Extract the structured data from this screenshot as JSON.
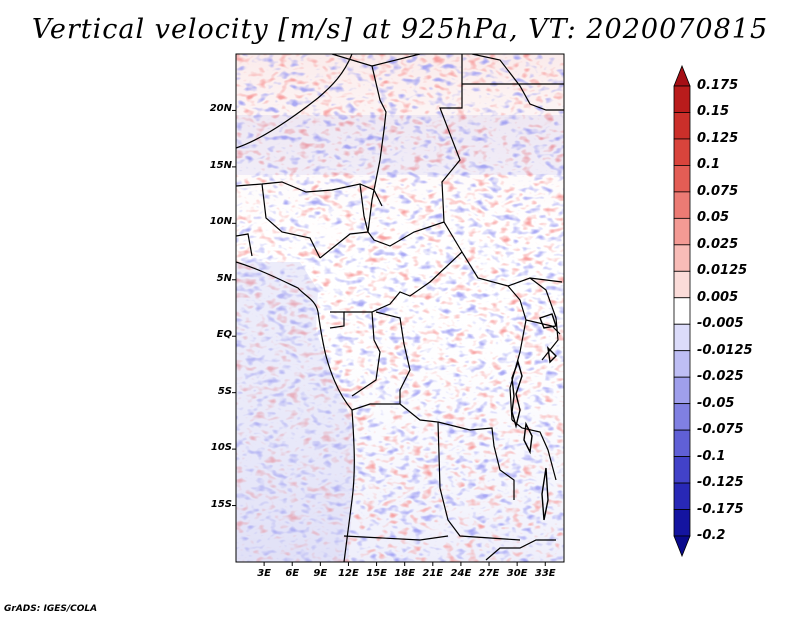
{
  "title": "Vertical velocity [m/s] at 925hPa, VT: 2020070815",
  "map": {
    "lat_labels": [
      {
        "label": "20N",
        "deg": 20
      },
      {
        "label": "15N",
        "deg": 15
      },
      {
        "label": "10N",
        "deg": 10
      },
      {
        "label": "5N",
        "deg": 5
      },
      {
        "label": "EQ",
        "deg": 0
      },
      {
        "label": "5S",
        "deg": -5
      },
      {
        "label": "10S",
        "deg": -10
      },
      {
        "label": "15S",
        "deg": -15
      }
    ],
    "lon_labels": [
      {
        "label": "3E",
        "deg": 3
      },
      {
        "label": "6E",
        "deg": 6
      },
      {
        "label": "9E",
        "deg": 9
      },
      {
        "label": "12E",
        "deg": 12
      },
      {
        "label": "15E",
        "deg": 15
      },
      {
        "label": "18E",
        "deg": 18
      },
      {
        "label": "21E",
        "deg": 21
      },
      {
        "label": "24E",
        "deg": 24
      },
      {
        "label": "27E",
        "deg": 27
      },
      {
        "label": "30E",
        "deg": 30
      },
      {
        "label": "33E",
        "deg": 33
      }
    ],
    "lon_range": [
      0,
      35
    ],
    "lat_range": [
      -20,
      25
    ]
  },
  "colorbar": {
    "labels": [
      "0.175",
      "0.15",
      "0.125",
      "0.1",
      "0.075",
      "0.05",
      "0.025",
      "0.0125",
      "0.005",
      "-0.005",
      "-0.0125",
      "-0.025",
      "-0.05",
      "-0.075",
      "-0.1",
      "-0.125",
      "-0.175",
      "-0.2"
    ],
    "colors": [
      "#a50f15",
      "#b91c1c",
      "#cb2f2a",
      "#d9443c",
      "#e35d55",
      "#ec7b74",
      "#f39a94",
      "#f8bcb7",
      "#fbdcd9",
      "#ffffff",
      "#dcdcfa",
      "#bebef4",
      "#9f9fec",
      "#8080e2",
      "#6060d6",
      "#4242c8",
      "#2828b6",
      "#1414a0",
      "#0a0a8c"
    ]
  },
  "credit": "GrADS: IGES/COLA"
}
